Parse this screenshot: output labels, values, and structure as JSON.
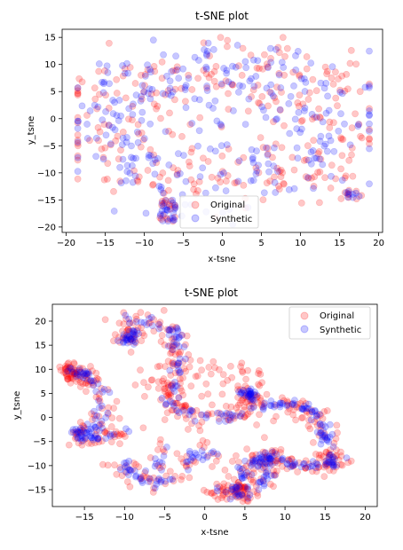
{
  "chart_data": [
    {
      "type": "scatter",
      "title": "t-SNE plot",
      "xlabel": "x-tsne",
      "ylabel": "y_tsne",
      "xlim": [
        -20.5,
        20.5
      ],
      "ylim": [
        -21,
        16.5
      ],
      "xticks": [
        "-20",
        "-15",
        "-10",
        "-5",
        "0",
        "5",
        "10",
        "15",
        "20"
      ],
      "yticks": [
        "15",
        "10",
        "5",
        "0",
        "-5",
        "-10",
        "-15",
        "-20"
      ],
      "legend_position": "lower-center",
      "grid": false,
      "series": [
        {
          "name": "Original",
          "color": "#ff0000",
          "alpha": 0.2,
          "points": []
        },
        {
          "name": "Synthetic",
          "color": "#0000ff",
          "alpha": 0.2,
          "points": []
        }
      ],
      "description": "broad annular point cloud; both series interleaved"
    },
    {
      "type": "scatter",
      "title": "t-SNE plot",
      "xlabel": "x-tsne",
      "ylabel": "y_tsne",
      "xlim": [
        -19,
        21.5
      ],
      "ylim": [
        -18.5,
        23.5
      ],
      "xticks": [
        "-15",
        "-10",
        "-5",
        "0",
        "5",
        "10",
        "15",
        "20"
      ],
      "yticks": [
        "20",
        "15",
        "10",
        "5",
        "0",
        "-5",
        "-10",
        "-15"
      ],
      "legend_position": "top-right",
      "grid": false,
      "series": [
        {
          "name": "Original",
          "color": "#ff0000",
          "alpha": 0.2,
          "points": []
        },
        {
          "name": "Synthetic",
          "color": "#0000ff",
          "alpha": 0.2,
          "points": []
        }
      ],
      "description": "curvy thread-like clusters; Synthetic concentrated along narrow bands"
    }
  ]
}
